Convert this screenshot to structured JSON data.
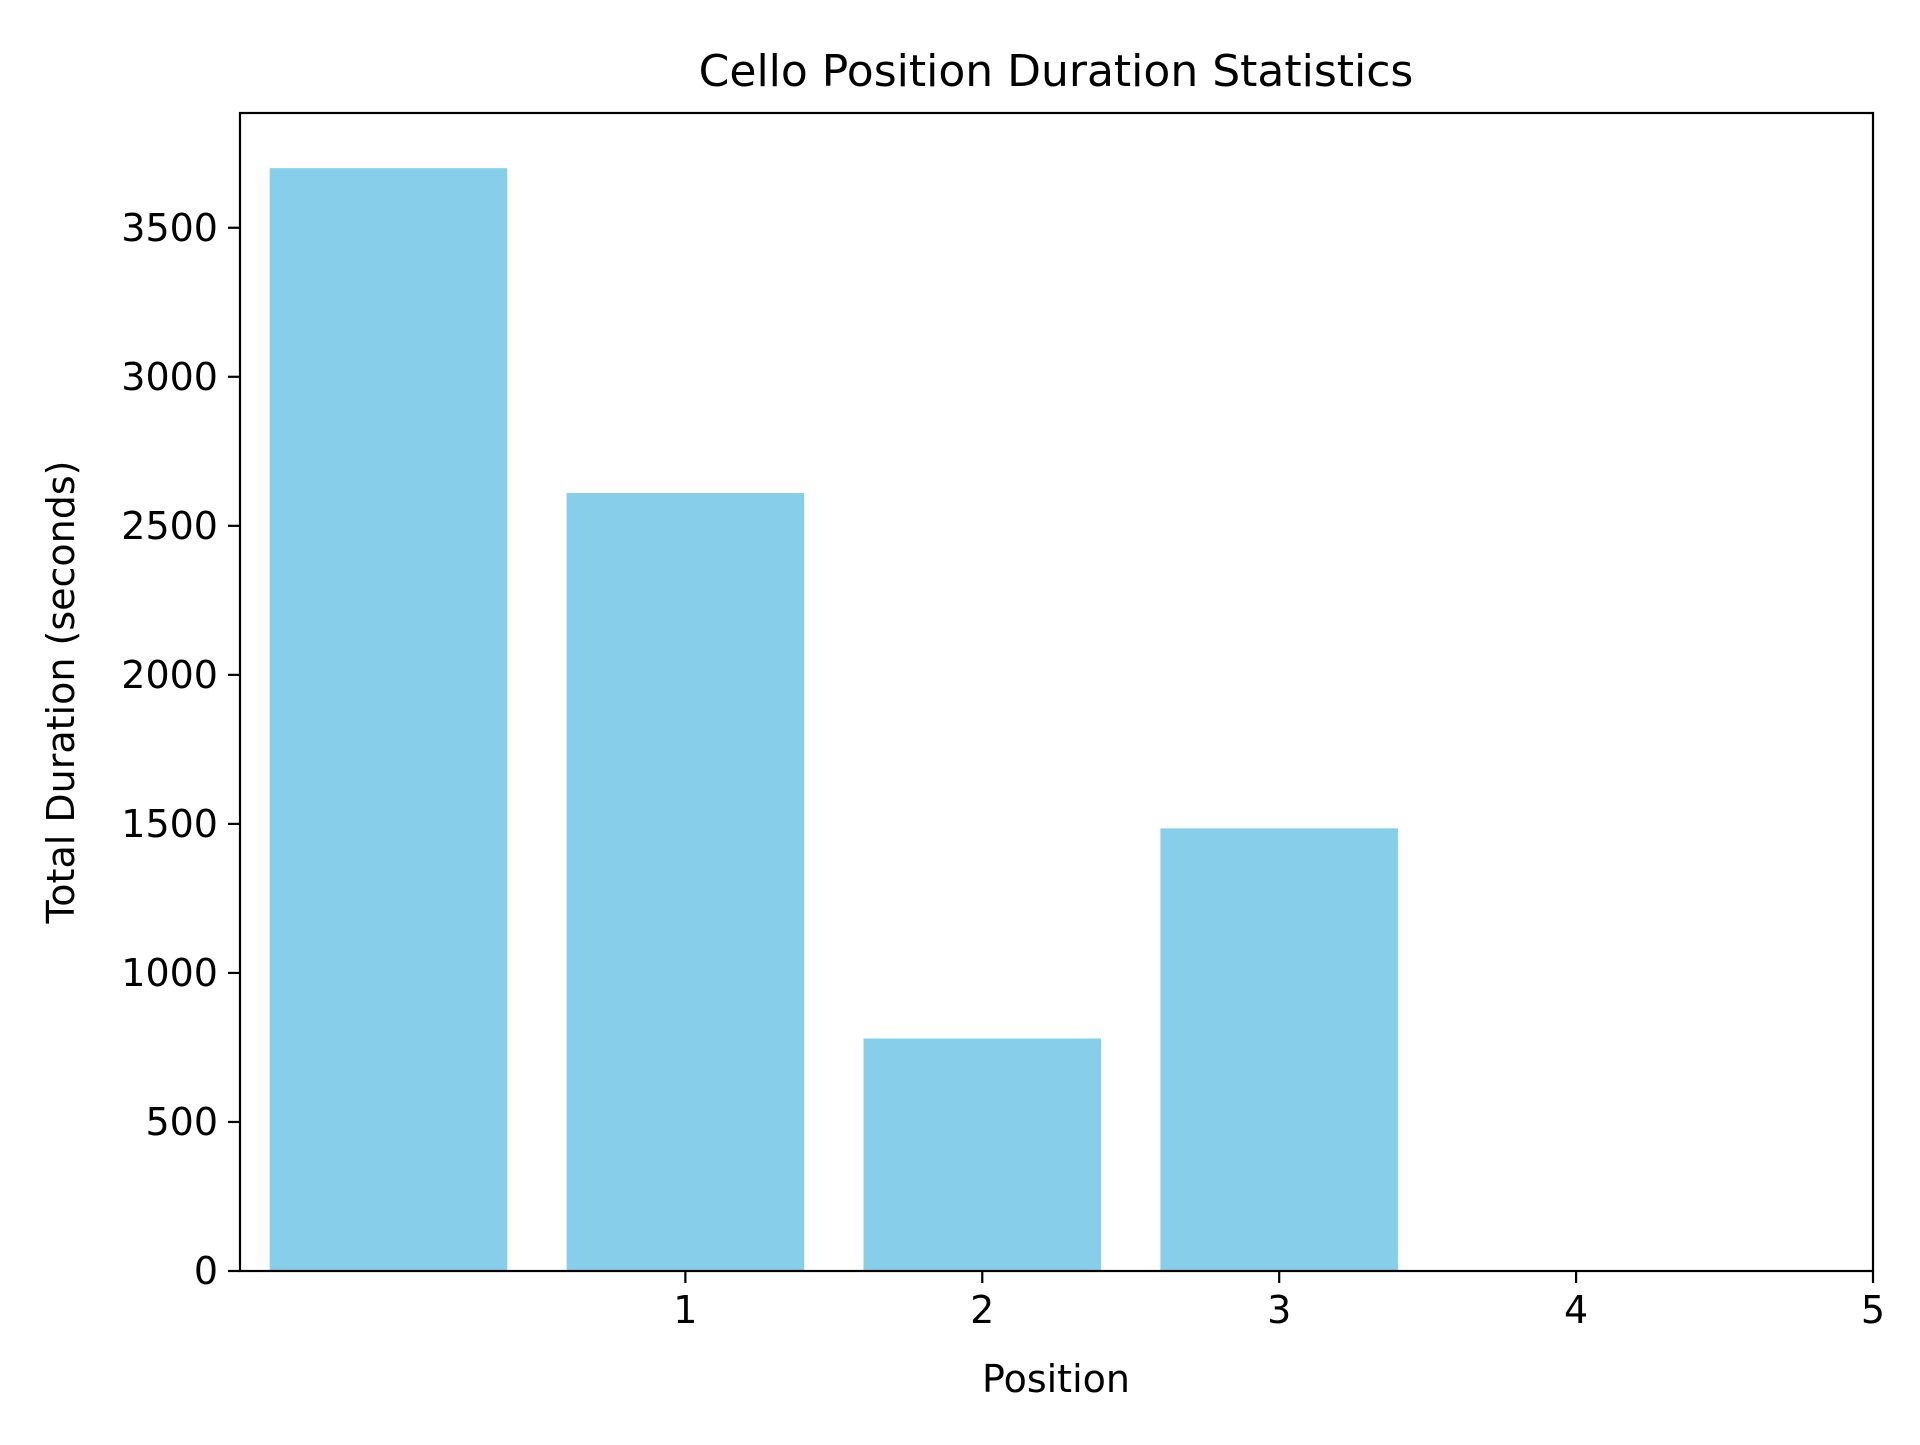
{
  "chart_data": {
    "type": "bar",
    "title": "Cello Position Duration Statistics",
    "xlabel": "Position",
    "ylabel": "Total Duration (seconds)",
    "x": [
      0,
      1,
      2,
      3
    ],
    "values": [
      3700,
      2610,
      780,
      1485
    ],
    "xlim": [
      -0.5,
      5
    ],
    "ylim": [
      0,
      3885
    ],
    "xticks": [
      1,
      2,
      3,
      4,
      5
    ],
    "yticks": [
      0,
      500,
      1000,
      1500,
      2000,
      2500,
      3000,
      3500
    ],
    "bar_color": "#87ceeb",
    "grid": false,
    "legend": "none"
  }
}
